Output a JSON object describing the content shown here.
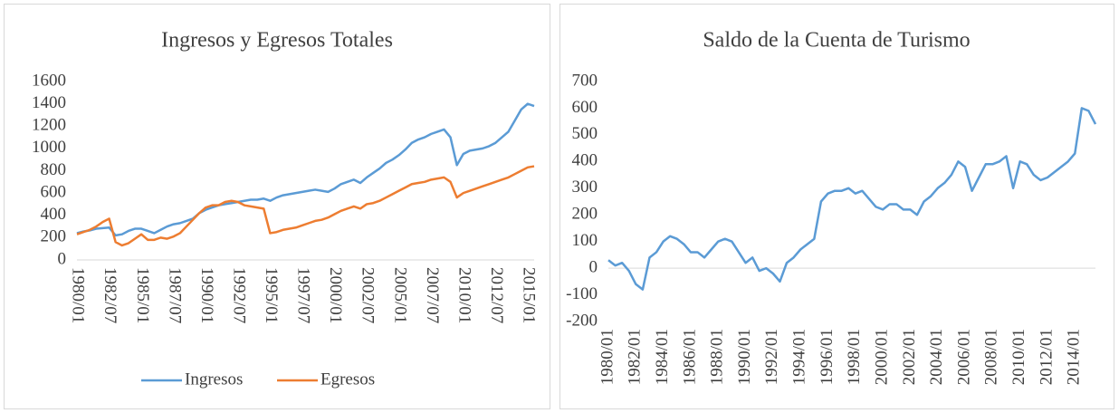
{
  "chart_data": [
    {
      "type": "line",
      "title": "Ingresos y Egresos Totales",
      "categories": [
        "1980/01",
        null,
        null,
        null,
        null,
        "1982/07",
        null,
        null,
        null,
        null,
        "1985/01",
        null,
        null,
        null,
        null,
        "1987/07",
        null,
        null,
        null,
        null,
        "1990/01",
        null,
        null,
        null,
        null,
        "1992/07",
        null,
        null,
        null,
        null,
        "1995/01",
        null,
        null,
        null,
        null,
        "1997/07",
        null,
        null,
        null,
        null,
        "2000/01",
        null,
        null,
        null,
        null,
        "2002/07",
        null,
        null,
        null,
        null,
        "2005/01",
        null,
        null,
        null,
        null,
        "2007/07",
        null,
        null,
        null,
        null,
        "2010/01",
        null,
        null,
        null,
        null,
        "2012/07",
        null,
        null,
        null,
        null,
        "2015/01",
        null
      ],
      "series": [
        {
          "name": "Ingresos",
          "color": "#5b9bd5",
          "values": [
            240,
            255,
            265,
            280,
            285,
            290,
            220,
            230,
            260,
            280,
            280,
            260,
            240,
            270,
            300,
            320,
            330,
            350,
            370,
            420,
            450,
            470,
            490,
            500,
            510,
            520,
            530,
            540,
            540,
            550,
            530,
            560,
            580,
            590,
            600,
            610,
            620,
            630,
            620,
            610,
            640,
            680,
            700,
            720,
            690,
            740,
            780,
            820,
            870,
            900,
            940,
            990,
            1050,
            1080,
            1100,
            1130,
            1150,
            1170,
            1100,
            850,
            950,
            980,
            990,
            1000,
            1020,
            1050,
            1100,
            1150,
            1250,
            1350,
            1400,
            1380
          ]
        },
        {
          "name": "Egresos",
          "color": "#ed7d31",
          "values": [
            230,
            250,
            270,
            300,
            340,
            370,
            160,
            130,
            150,
            190,
            230,
            180,
            180,
            200,
            190,
            210,
            240,
            300,
            360,
            420,
            470,
            490,
            490,
            520,
            530,
            520,
            490,
            480,
            470,
            460,
            240,
            250,
            270,
            280,
            290,
            310,
            330,
            350,
            360,
            380,
            410,
            440,
            460,
            480,
            460,
            500,
            510,
            530,
            560,
            590,
            620,
            650,
            680,
            690,
            700,
            720,
            730,
            740,
            700,
            560,
            600,
            620,
            640,
            660,
            680,
            700,
            720,
            740,
            770,
            800,
            830,
            840
          ]
        }
      ],
      "ylim": [
        0,
        1600
      ],
      "yticks": [
        0,
        200,
        400,
        600,
        800,
        1000,
        1200,
        1400,
        1600
      ],
      "grid": false,
      "legend": "bottom"
    },
    {
      "type": "line",
      "title": "Saldo de la Cuenta de Turismo",
      "categories": [
        "1980/01",
        null,
        null,
        null,
        "1982/01",
        null,
        null,
        null,
        "1984/01",
        null,
        null,
        null,
        "1986/01",
        null,
        null,
        null,
        "1988/01",
        null,
        null,
        null,
        "1990/01",
        null,
        null,
        null,
        "1992/01",
        null,
        null,
        null,
        "1994/01",
        null,
        null,
        null,
        "1996/01",
        null,
        null,
        null,
        "1998/01",
        null,
        null,
        null,
        "2000/01",
        null,
        null,
        null,
        "2002/01",
        null,
        null,
        null,
        "2004/01",
        null,
        null,
        null,
        "2006/01",
        null,
        null,
        null,
        "2008/01",
        null,
        null,
        null,
        "2010/01",
        null,
        null,
        null,
        "2012/01",
        null,
        null,
        null,
        "2014/01",
        null,
        null,
        null
      ],
      "color": "#5b9bd5",
      "values": [
        30,
        10,
        20,
        -10,
        -60,
        -80,
        40,
        60,
        100,
        120,
        110,
        90,
        60,
        60,
        40,
        70,
        100,
        110,
        100,
        60,
        20,
        40,
        -10,
        0,
        -20,
        -50,
        20,
        40,
        70,
        90,
        110,
        250,
        280,
        290,
        290,
        300,
        280,
        290,
        260,
        230,
        220,
        240,
        240,
        220,
        220,
        200,
        250,
        270,
        300,
        320,
        350,
        400,
        380,
        290,
        340,
        390,
        390,
        400,
        420,
        300,
        400,
        390,
        350,
        330,
        340,
        360,
        380,
        400,
        430,
        600,
        590,
        540
      ],
      "ylim": [
        -200,
        700
      ],
      "yticks": [
        -200,
        -100,
        0,
        100,
        200,
        300,
        400,
        500,
        600,
        700
      ],
      "grid": false
    }
  ]
}
